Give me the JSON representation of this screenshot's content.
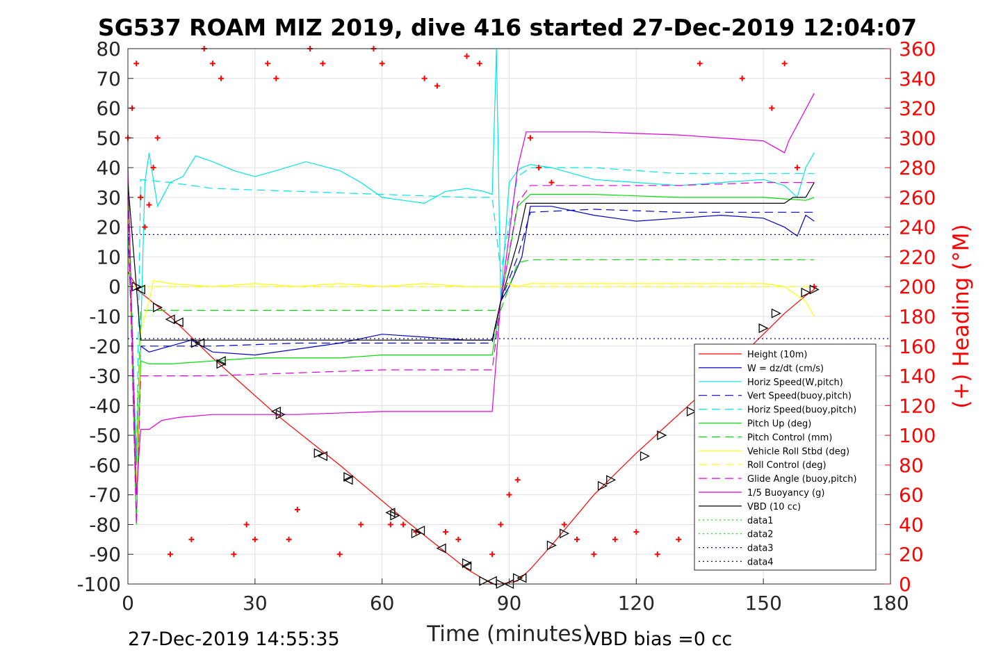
{
  "chart_data": {
    "type": "line",
    "title": "SG537 ROAM MIZ 2019, dive 416 started 27-Dec-2019 12:04:07",
    "xlabel": "Time (minutes)",
    "ylabel_right": "(+) Heading (°M)",
    "footer_left": "27-Dec-2019 14:55:35",
    "footer_right": "VBD bias =0 cc",
    "xlim": [
      0,
      180
    ],
    "ylim": [
      -100,
      80
    ],
    "y2lim": [
      0,
      360
    ],
    "xticks": [
      "0",
      "30",
      "60",
      "90",
      "120",
      "150",
      "180"
    ],
    "yticks": [
      "80",
      "70",
      "60",
      "50",
      "40",
      "30",
      "20",
      "10",
      "0",
      "-10",
      "-20",
      "-30",
      "-40",
      "-50",
      "-60",
      "-70",
      "-80",
      "-90",
      "-100"
    ],
    "y2ticks": [
      "360",
      "340",
      "320",
      "300",
      "280",
      "260",
      "240",
      "220",
      "200",
      "180",
      "160",
      "140",
      "120",
      "100",
      "80",
      "60",
      "40",
      "20",
      "0"
    ],
    "grid": true,
    "legend_position": "bottom-right",
    "series": [
      {
        "name": "Height (10m)",
        "color": "#ff0000",
        "style": "solid",
        "x": [
          0,
          2,
          3,
          10,
          20,
          35,
          50,
          65,
          80,
          86,
          88,
          92,
          95,
          100,
          110,
          120,
          130,
          140,
          150,
          155,
          160,
          162
        ],
        "y": [
          5,
          0,
          -2,
          -10,
          -24,
          -43,
          -60,
          -78,
          -95,
          -100,
          -100,
          -99,
          -95,
          -87,
          -70,
          -56,
          -43,
          -30,
          -16,
          -9,
          -3,
          -1
        ]
      },
      {
        "name": "W = dz/dt (cm/s)",
        "color": "#0000cc",
        "style": "solid",
        "x": [
          0,
          2,
          3,
          5,
          10,
          15,
          20,
          30,
          40,
          50,
          60,
          70,
          80,
          86,
          88,
          90,
          93,
          95,
          100,
          110,
          120,
          130,
          140,
          150,
          155,
          158,
          160,
          162
        ],
        "y": [
          20,
          -60,
          -20,
          -22,
          -20,
          -18,
          -22,
          -23,
          -21,
          -19,
          -16,
          -17,
          -18,
          -18,
          -5,
          0,
          10,
          27,
          27,
          24,
          22,
          23,
          24,
          23,
          20,
          17,
          24,
          22
        ]
      },
      {
        "name": "Horiz Speed(W,pitch)",
        "color": "#00e5e5",
        "style": "solid",
        "x": [
          0,
          2,
          4,
          5,
          7,
          10,
          13,
          16,
          20,
          25,
          30,
          35,
          42,
          50,
          55,
          60,
          65,
          70,
          75,
          80,
          84,
          86,
          87,
          88,
          90,
          92,
          93,
          95,
          100,
          110,
          120,
          130,
          140,
          150,
          155,
          158,
          160,
          162
        ],
        "y": [
          40,
          -70,
          35,
          45,
          27,
          35,
          37,
          44,
          42,
          39,
          37,
          39,
          42,
          39,
          35,
          30,
          29,
          28,
          32,
          33,
          32,
          31,
          80,
          -5,
          35,
          39,
          40,
          41,
          40,
          36,
          35,
          34,
          35,
          36,
          34,
          30,
          40,
          45
        ]
      },
      {
        "name": "Vert Speed(buoy,pitch)",
        "color": "#0000cc",
        "style": "dashed",
        "x": [
          0,
          2,
          3,
          10,
          20,
          40,
          60,
          80,
          86,
          88,
          92,
          95,
          110,
          130,
          150,
          160,
          162
        ],
        "y": [
          30,
          -60,
          -20,
          -20,
          -20,
          -19,
          -19,
          -19,
          -19,
          -5,
          10,
          25,
          26,
          25,
          25,
          25,
          25
        ]
      },
      {
        "name": "Horiz Speed(buoy,pitch)",
        "color": "#00e5e5",
        "style": "dashed",
        "x": [
          0,
          2,
          3,
          10,
          20,
          40,
          60,
          80,
          86,
          88,
          92,
          95,
          110,
          130,
          150,
          160,
          162
        ],
        "y": [
          40,
          -60,
          36,
          35,
          33,
          32,
          31,
          30,
          30,
          5,
          37,
          40,
          40,
          38,
          38,
          38,
          38
        ]
      },
      {
        "name": "Pitch Up (deg)",
        "color": "#00dd00",
        "style": "solid",
        "x": [
          0,
          2,
          3,
          5,
          10,
          20,
          30,
          40,
          50,
          60,
          70,
          80,
          86,
          88,
          92,
          95,
          110,
          130,
          150,
          160,
          162
        ],
        "y": [
          30,
          -80,
          -25,
          -26,
          -26,
          -25,
          -24,
          -24,
          -24,
          -23,
          -23,
          -23,
          -23,
          -5,
          27,
          31,
          31,
          30,
          30,
          29,
          30
        ]
      },
      {
        "name": "Pitch Control (mm)",
        "color": "#00dd00",
        "style": "dashed",
        "x": [
          0,
          2,
          3,
          10,
          20,
          40,
          60,
          80,
          86,
          88,
          92,
          95,
          110,
          130,
          150,
          162
        ],
        "y": [
          20,
          -60,
          -8,
          -8,
          -8,
          -8,
          -8,
          -8,
          -8,
          -8,
          8,
          9,
          9,
          9,
          9,
          9
        ]
      },
      {
        "name": "Vehicle Roll Stbd (deg)",
        "color": "#ffff00",
        "style": "solid",
        "x": [
          0,
          2,
          3,
          5,
          6,
          10,
          20,
          30,
          40,
          50,
          60,
          70,
          80,
          86,
          88,
          90,
          92,
          95,
          100,
          110,
          120,
          130,
          140,
          150,
          155,
          160,
          162
        ],
        "y": [
          30,
          -70,
          -15,
          -5,
          2,
          1,
          0,
          1,
          0,
          1,
          0,
          1,
          0,
          0,
          0,
          1,
          0,
          1,
          1,
          1,
          1,
          1,
          1,
          1,
          0,
          -5,
          -10
        ]
      },
      {
        "name": "Roll Control (deg)",
        "color": "#ffff00",
        "style": "dashed",
        "x": [
          0,
          3,
          20,
          40,
          60,
          80,
          86,
          95,
          120,
          150,
          162
        ],
        "y": [
          0,
          0,
          0,
          0,
          0,
          0,
          0,
          0,
          0,
          0,
          0
        ]
      },
      {
        "name": "Glide Angle (buoy,pitch)",
        "color": "#dd00dd",
        "style": "dashed",
        "x": [
          0,
          2,
          3,
          10,
          20,
          40,
          60,
          80,
          86,
          88,
          92,
          95,
          110,
          130,
          150,
          160,
          162
        ],
        "y": [
          30,
          -80,
          -30,
          -30,
          -30,
          -29,
          -28,
          -28,
          -28,
          -5,
          28,
          34,
          34,
          34,
          35,
          35,
          35
        ]
      },
      {
        "name": "1/5 Buoyancy (g)",
        "color": "#dd00dd",
        "style": "solid",
        "x": [
          0,
          2,
          3,
          5,
          8,
          12,
          20,
          40,
          60,
          80,
          86,
          88,
          92,
          94,
          110,
          130,
          150,
          155,
          156,
          162
        ],
        "y": [
          40,
          -70,
          -48,
          -48,
          -45,
          -44,
          -43,
          -43,
          -42,
          -42,
          -42,
          -5,
          40,
          52,
          52,
          51,
          49,
          45,
          49,
          65
        ]
      },
      {
        "name": "VBD (10 cc)",
        "color": "#000000",
        "style": "solid",
        "x": [
          0,
          2,
          3,
          20,
          40,
          60,
          80,
          86,
          88,
          92,
          94,
          110,
          130,
          150,
          155,
          157,
          160,
          162
        ],
        "y": [
          35,
          0,
          -18,
          -18,
          -18,
          -18,
          -18,
          -18,
          -5,
          15,
          28,
          28,
          28,
          28,
          28,
          30,
          30,
          35
        ]
      },
      {
        "name": "data1",
        "color": "#00dd00",
        "style": "dotted",
        "x": [],
        "y": []
      },
      {
        "name": "data2",
        "color": "#00dd00",
        "style": "dotted",
        "x": [],
        "y": []
      },
      {
        "name": "data3",
        "color": "#000080",
        "style": "dotted",
        "x": [
          0,
          180
        ],
        "y": [
          17.5,
          17.5
        ]
      },
      {
        "name": "data4",
        "color": "#000080",
        "style": "dotted",
        "x": [
          0,
          180
        ],
        "y": [
          -17.5,
          -17.5
        ]
      }
    ],
    "heading": {
      "color": "#ff0000",
      "axis": "right",
      "marker": "+",
      "x": [
        0,
        1,
        2,
        3,
        4,
        5,
        6,
        7,
        10,
        15,
        18,
        20,
        22,
        25,
        28,
        30,
        33,
        35,
        38,
        40,
        43,
        46,
        50,
        55,
        58,
        60,
        62,
        65,
        68,
        70,
        73,
        75,
        78,
        80,
        83,
        86,
        88,
        90,
        92,
        95,
        97,
        100,
        103,
        106,
        110,
        115,
        120,
        125,
        130,
        135,
        140,
        145,
        150,
        152,
        155,
        158,
        160,
        162
      ],
      "y": [
        300,
        320,
        350,
        260,
        240,
        255,
        280,
        300,
        20,
        30,
        360,
        350,
        340,
        20,
        40,
        30,
        350,
        340,
        30,
        50,
        360,
        350,
        20,
        40,
        360,
        350,
        40,
        40,
        35,
        340,
        335,
        35,
        30,
        355,
        350,
        20,
        40,
        60,
        70,
        300,
        280,
        270,
        40,
        30,
        20,
        30,
        35,
        20,
        30,
        350,
        20,
        340,
        20,
        320,
        350,
        280,
        30,
        200
      ]
    },
    "triangles_left": {
      "x": [
        3,
        10,
        12,
        17,
        22,
        35,
        46,
        52,
        62,
        69,
        74,
        80,
        86,
        90,
        93
      ],
      "y": [
        -1,
        -11,
        -12,
        -19,
        -25,
        -42,
        -57,
        -65,
        -76,
        -82,
        -88,
        -94,
        -99,
        -100,
        -98
      ]
    },
    "triangles_right": {
      "x": [
        2,
        7,
        16,
        22,
        36,
        45,
        52,
        63,
        68,
        80,
        84,
        88,
        92,
        100,
        103,
        112,
        114,
        122,
        126,
        133,
        138,
        141,
        150,
        153,
        160,
        162
      ],
      "y": [
        0,
        -7,
        -19,
        -26,
        -43,
        -56,
        -64,
        -77,
        -83,
        -93,
        -99,
        -100,
        -98,
        -87,
        -83,
        -67,
        -65,
        -57,
        -50,
        -42,
        -35,
        -31,
        -14,
        -9,
        -2,
        -1
      ]
    }
  },
  "legend": {
    "entries": [
      {
        "label": "Height (10m)",
        "color": "#ff0000",
        "style": "solid"
      },
      {
        "label": "W = dz/dt (cm/s)",
        "color": "#0000cc",
        "style": "solid"
      },
      {
        "label": "Horiz Speed(W,pitch)",
        "color": "#00e5e5",
        "style": "solid"
      },
      {
        "label": "Vert Speed(buoy,pitch)",
        "color": "#0000cc",
        "style": "dashed"
      },
      {
        "label": "Horiz Speed(buoy,pitch)",
        "color": "#00e5e5",
        "style": "dashed"
      },
      {
        "label": "Pitch Up (deg)",
        "color": "#00dd00",
        "style": "solid"
      },
      {
        "label": "Pitch Control (mm)",
        "color": "#00dd00",
        "style": "dashed"
      },
      {
        "label": "Vehicle Roll Stbd (deg)",
        "color": "#ffff00",
        "style": "solid"
      },
      {
        "label": "Roll Control (deg)",
        "color": "#ffff00",
        "style": "dashed"
      },
      {
        "label": "Glide Angle (buoy,pitch)",
        "color": "#dd00dd",
        "style": "dashed"
      },
      {
        "label": "1/5 Buoyancy (g)",
        "color": "#dd00dd",
        "style": "solid"
      },
      {
        "label": "VBD (10 cc)",
        "color": "#000000",
        "style": "solid"
      },
      {
        "label": "data1",
        "color": "#00dd00",
        "style": "dotted"
      },
      {
        "label": "data2",
        "color": "#00dd00",
        "style": "dotted"
      },
      {
        "label": "data3",
        "color": "#000080",
        "style": "dotted"
      },
      {
        "label": "data4",
        "color": "#000080",
        "style": "dotted"
      }
    ]
  }
}
